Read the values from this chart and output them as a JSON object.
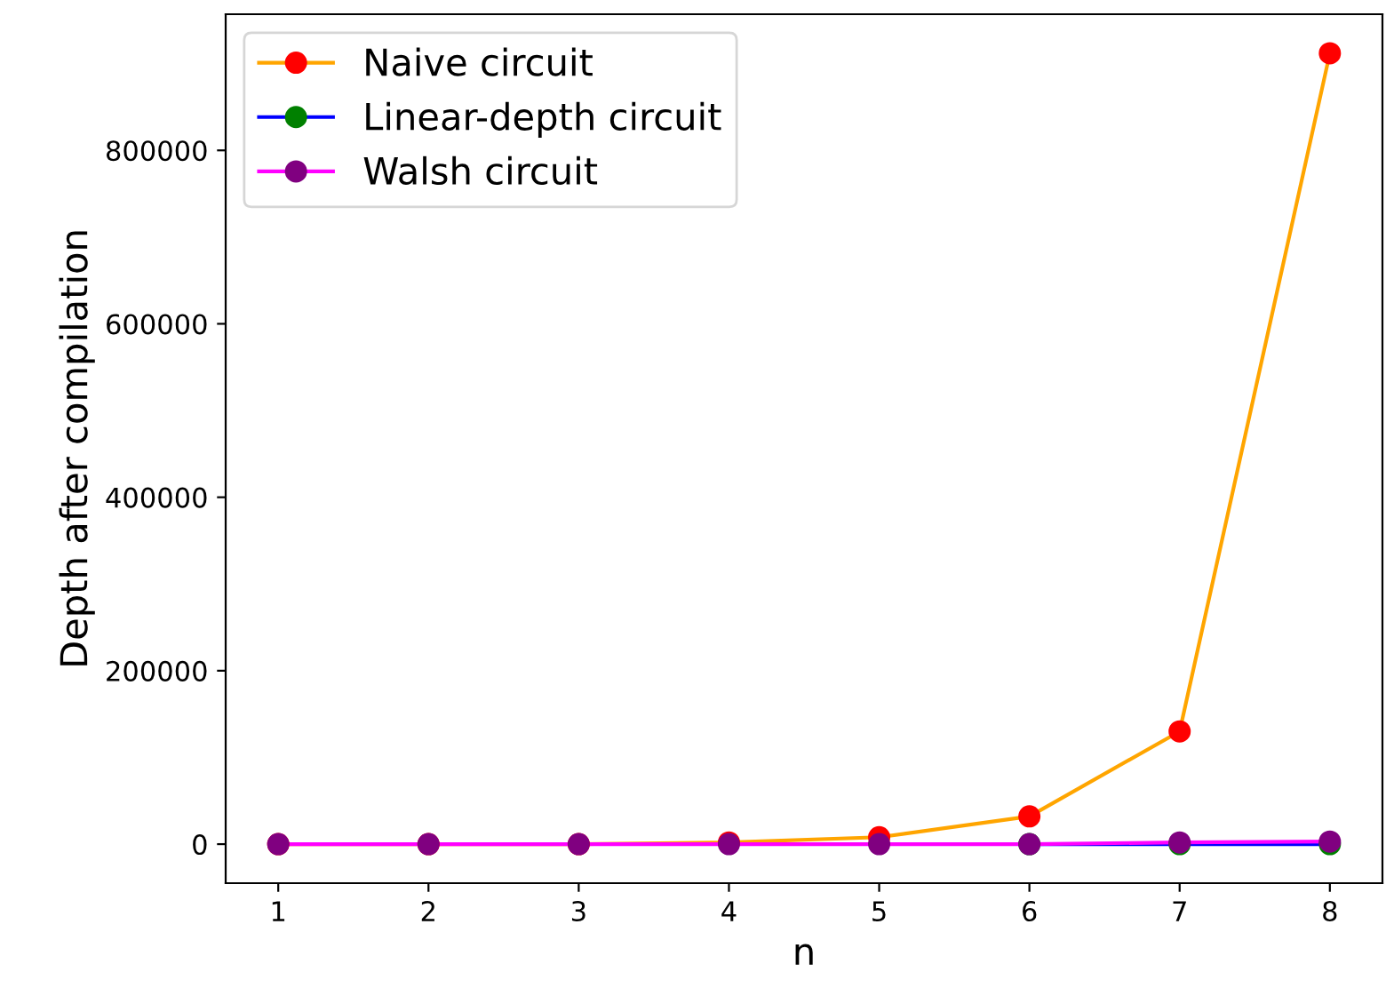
{
  "chart_data": {
    "type": "line",
    "xlabel": "n",
    "ylabel": "Depth after compilation",
    "x": [
      1,
      2,
      3,
      4,
      5,
      6,
      7,
      8
    ],
    "series": [
      {
        "name": "Naive circuit",
        "color": "#ffa500",
        "colors": [
          "#ff0000",
          "#ff0000",
          "#ff0000",
          "#ff0000",
          "#ff0000",
          "#ff0000",
          "#ff0000",
          "#ff0000"
        ],
        "values": [
          0,
          0,
          0,
          2000,
          8000,
          32000,
          130000,
          912000
        ]
      },
      {
        "name": "Linear-depth circuit",
        "color": "#0000ff",
        "colors": [
          "#008000",
          "#008000",
          "#008000",
          "#008000",
          "#008000",
          "#008000",
          "#008000",
          "#008000"
        ],
        "values": [
          null,
          null,
          null,
          null,
          null,
          0,
          0,
          0
        ]
      },
      {
        "name": "Walsh circuit",
        "color": "#ff00ff",
        "colors": [
          "#800080",
          "#800080",
          "#800080",
          "#800080",
          "#800080",
          "#800080",
          "#800080",
          "#800080"
        ],
        "values": [
          0,
          0,
          0,
          0,
          0,
          0,
          2000,
          3000
        ]
      }
    ],
    "xlim": [
      0.65,
      8.35
    ],
    "xticks": [
      1,
      2,
      3,
      4,
      5,
      6,
      7,
      8
    ],
    "ylim": [
      -45000,
      957000
    ],
    "yticks": [
      0,
      200000,
      400000,
      600000,
      800000
    ],
    "marker": "circle",
    "line_style": "solid",
    "legend": "top left",
    "grid": false
  }
}
